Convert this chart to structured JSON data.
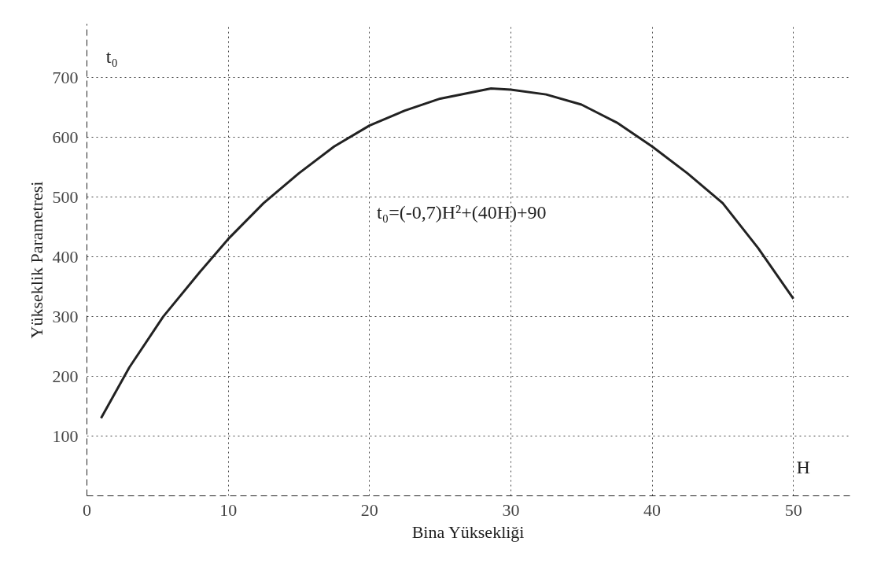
{
  "chart_data": {
    "type": "line",
    "xlabel": "Bina Yüksekliği",
    "ylabel": "Yükseklik Parametresi",
    "annotations": [
      "t₀=(-0,7)H²+(40H)+90",
      "t₀",
      "H"
    ],
    "x": [
      1,
      3,
      5.4,
      8,
      10,
      12.5,
      15,
      17.5,
      20,
      22.5,
      25,
      28.6,
      30,
      32.5,
      35,
      37.5,
      40,
      42.5,
      45,
      47.5,
      50
    ],
    "series": [
      {
        "color": "#222222",
        "values": [
          130,
          215,
          300,
          375,
          430,
          490,
          540,
          585,
          620,
          645,
          665,
          682,
          680,
          672,
          655,
          625,
          585,
          540,
          490,
          415,
          330
        ]
      }
    ],
    "xlim": [
      0,
      54
    ],
    "ylim": [
      0,
      790
    ],
    "xticks": [
      0,
      10,
      20,
      30,
      40,
      50
    ],
    "yticks": [
      100,
      200,
      300,
      400,
      500,
      600,
      700
    ],
    "grid": true,
    "marker": "none",
    "line_style": "solid"
  }
}
